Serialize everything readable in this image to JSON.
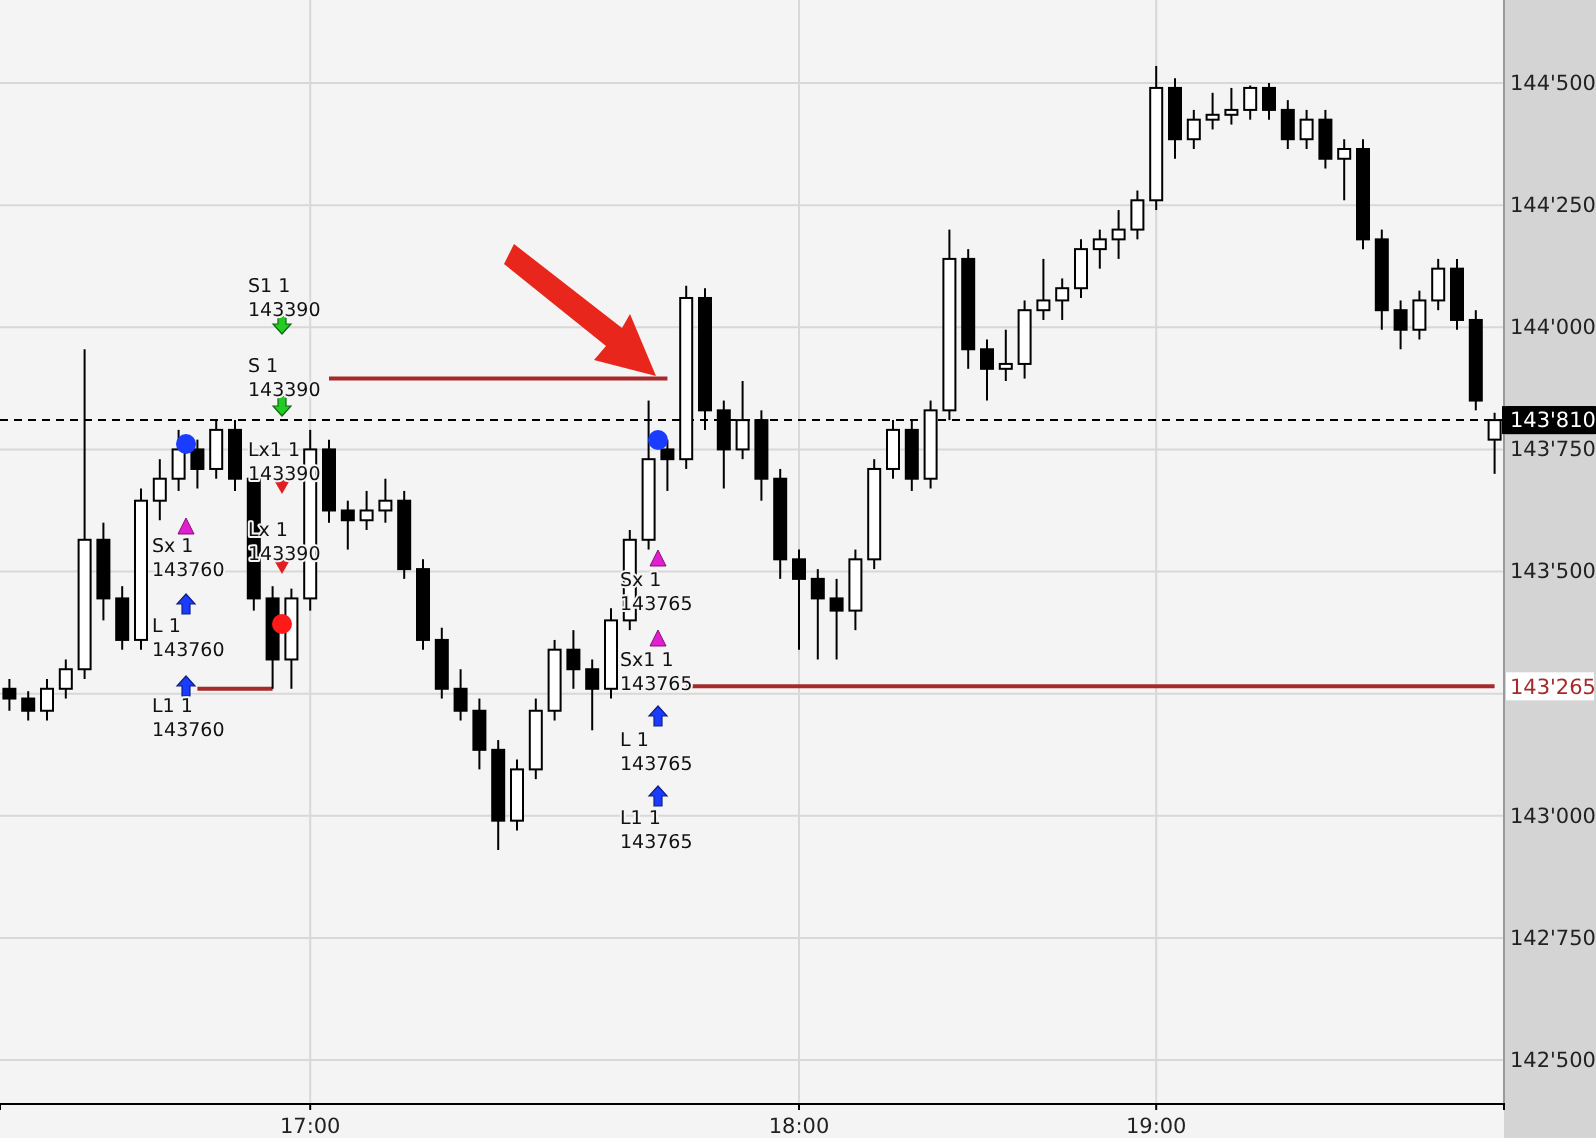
{
  "chart_data": {
    "type": "candlestick",
    "categories": [
      null,
      null,
      null,
      null,
      null,
      null,
      null,
      null,
      null,
      null,
      null,
      null,
      null,
      null,
      null,
      null,
      "17:00",
      null,
      null,
      null,
      null,
      null,
      null,
      null,
      null,
      null,
      null,
      null,
      null,
      null,
      null,
      null,
      null,
      null,
      null,
      null,
      null,
      null,
      null,
      null,
      null,
      null,
      "18:00",
      null,
      null,
      null,
      null,
      null,
      null,
      null,
      null,
      null,
      null,
      null,
      null,
      null,
      null,
      null,
      null,
      null,
      null,
      "19:00",
      null,
      null,
      null,
      null,
      null,
      null,
      null,
      null,
      null,
      null,
      null,
      null,
      null,
      null,
      null,
      null,
      null,
      null
    ],
    "ohlc": [
      [
        143260,
        143280,
        143215,
        143240
      ],
      [
        143240,
        143255,
        143195,
        143215
      ],
      [
        143215,
        143280,
        143195,
        143260
      ],
      [
        143260,
        143320,
        143240,
        143300
      ],
      [
        143300,
        143955,
        143280,
        143565
      ],
      [
        143565,
        143600,
        143400,
        143445
      ],
      [
        143445,
        143470,
        143340,
        143360
      ],
      [
        143360,
        143670,
        143340,
        143645
      ],
      [
        143645,
        143730,
        143605,
        143690
      ],
      [
        143690,
        143790,
        143665,
        143750
      ],
      [
        143750,
        143770,
        143670,
        143710
      ],
      [
        143710,
        143810,
        143690,
        143790
      ],
      [
        143790,
        143810,
        143665,
        143690
      ],
      [
        143690,
        143710,
        143420,
        143445
      ],
      [
        143445,
        143470,
        143260,
        143320
      ],
      [
        143320,
        143465,
        143260,
        143445
      ],
      [
        143445,
        143790,
        143420,
        143750
      ],
      [
        143750,
        143770,
        143600,
        143625
      ],
      [
        143625,
        143645,
        143545,
        143605
      ],
      [
        143605,
        143665,
        143585,
        143625
      ],
      [
        143625,
        143690,
        143600,
        143645
      ],
      [
        143645,
        143665,
        143485,
        143505
      ],
      [
        143505,
        143525,
        143340,
        143360
      ],
      [
        143360,
        143385,
        143240,
        143260
      ],
      [
        143260,
        143300,
        143195,
        143215
      ],
      [
        143215,
        143240,
        143095,
        143135
      ],
      [
        143135,
        143155,
        142930,
        142990
      ],
      [
        142990,
        143115,
        142970,
        143095
      ],
      [
        143095,
        143240,
        143075,
        143215
      ],
      [
        143215,
        143360,
        143195,
        143340
      ],
      [
        143340,
        143380,
        143260,
        143300
      ],
      [
        143300,
        143320,
        143175,
        143260
      ],
      [
        143260,
        143425,
        143240,
        143400
      ],
      [
        143400,
        143585,
        143380,
        143565
      ],
      [
        143565,
        143850,
        143545,
        143730
      ],
      [
        143750,
        143770,
        143665,
        143730
      ],
      [
        143730,
        144085,
        143710,
        144060
      ],
      [
        144060,
        144080,
        143790,
        143830
      ],
      [
        143830,
        143850,
        143670,
        143750
      ],
      [
        143750,
        143890,
        143730,
        143810
      ],
      [
        143810,
        143830,
        143645,
        143690
      ],
      [
        143690,
        143710,
        143485,
        143525
      ],
      [
        143525,
        143545,
        143340,
        143485
      ],
      [
        143485,
        143505,
        143320,
        143445
      ],
      [
        143445,
        143485,
        143320,
        143420
      ],
      [
        143420,
        143545,
        143380,
        143525
      ],
      [
        143525,
        143730,
        143505,
        143710
      ],
      [
        143710,
        143810,
        143690,
        143790
      ],
      [
        143790,
        143810,
        143665,
        143690
      ],
      [
        143690,
        143850,
        143670,
        143830
      ],
      [
        143830,
        144200,
        143810,
        144140
      ],
      [
        144140,
        144160,
        143915,
        143955
      ],
      [
        143955,
        143975,
        143850,
        143915
      ],
      [
        143915,
        143995,
        143890,
        143925
      ],
      [
        143925,
        144055,
        143895,
        144035
      ],
      [
        144035,
        144140,
        144015,
        144055
      ],
      [
        144055,
        144100,
        144015,
        144080
      ],
      [
        144080,
        144180,
        144060,
        144160
      ],
      [
        144160,
        144200,
        144120,
        144180
      ],
      [
        144180,
        144240,
        144140,
        144200
      ],
      [
        144200,
        144280,
        144180,
        144260
      ],
      [
        144260,
        144535,
        144240,
        144490
      ],
      [
        144490,
        144510,
        144345,
        144385
      ],
      [
        144385,
        144445,
        144365,
        144425
      ],
      [
        144425,
        144480,
        144405,
        144435
      ],
      [
        144435,
        144490,
        144415,
        144445
      ],
      [
        144445,
        144495,
        144425,
        144490
      ],
      [
        144490,
        144500,
        144425,
        144445
      ],
      [
        144445,
        144465,
        144365,
        144385
      ],
      [
        144385,
        144445,
        144365,
        144425
      ],
      [
        144425,
        144445,
        144325,
        144345
      ],
      [
        144345,
        144385,
        144260,
        144365
      ],
      [
        144365,
        144385,
        144160,
        144180
      ],
      [
        144180,
        144200,
        143995,
        144035
      ],
      [
        144035,
        144055,
        143955,
        143995
      ],
      [
        143995,
        144075,
        143975,
        144055
      ],
      [
        144055,
        144140,
        144035,
        144120
      ],
      [
        144120,
        144140,
        143995,
        144015
      ],
      [
        144015,
        144035,
        143830,
        143850
      ],
      [
        143770,
        143825,
        143700,
        143810
      ]
    ],
    "series": [
      {
        "type": "line",
        "color": "#a52a2a",
        "values": [
          null,
          null,
          null,
          null,
          null,
          null,
          null,
          null,
          null,
          null,
          null,
          null,
          null,
          null,
          null,
          null,
          null,
          143895,
          143895,
          143895,
          143895,
          143895,
          143895,
          143895,
          143895,
          143895,
          143895,
          143895,
          143895,
          143895,
          143895,
          143895,
          143895,
          143895,
          143895,
          143895,
          null,
          null,
          null,
          null,
          null,
          null,
          null,
          null,
          null,
          null,
          null,
          null,
          null,
          null,
          null,
          null,
          null,
          null,
          null,
          null,
          null,
          null,
          null,
          null,
          null,
          null,
          null,
          null,
          null,
          null,
          null,
          null,
          null,
          null,
          null,
          null,
          null,
          null,
          null,
          null,
          null,
          null,
          null,
          null
        ]
      },
      {
        "type": "line",
        "color": "#a52a2a",
        "values": [
          null,
          null,
          null,
          null,
          null,
          null,
          null,
          null,
          null,
          null,
          143260,
          143260,
          143260,
          143260,
          143260,
          null,
          null,
          null,
          null,
          null,
          null,
          null,
          null,
          null,
          null,
          null,
          null,
          null,
          null,
          null,
          null,
          null,
          null,
          null,
          null,
          null,
          null,
          null,
          null,
          null,
          null,
          null,
          null,
          null,
          null,
          null,
          null,
          null,
          null,
          null,
          null,
          null,
          null,
          null,
          null,
          null,
          null,
          null,
          null,
          null,
          null,
          null,
          null,
          null,
          null,
          null,
          null,
          null,
          null,
          null,
          null,
          null,
          null,
          null,
          null,
          null,
          null,
          null,
          null,
          null
        ]
      },
      {
        "type": "line",
        "color": "#a52a2a",
        "values": [
          null,
          null,
          null,
          null,
          null,
          null,
          null,
          null,
          null,
          null,
          null,
          null,
          null,
          null,
          null,
          null,
          null,
          null,
          null,
          null,
          null,
          null,
          null,
          null,
          null,
          null,
          null,
          null,
          null,
          null,
          null,
          null,
          null,
          null,
          null,
          null,
          143265,
          143265,
          143265,
          143265,
          143265,
          143265,
          143265,
          143265,
          143265,
          143265,
          143265,
          143265,
          143265,
          143265,
          143265,
          143265,
          143265,
          143265,
          143265,
          143265,
          143265,
          143265,
          143265,
          143265,
          143265,
          143265,
          143265,
          143265,
          143265,
          143265,
          143265,
          143265,
          143265,
          143265,
          143265,
          143265,
          143265,
          143265,
          143265,
          143265,
          143265,
          143265,
          143265,
          143265
        ]
      }
    ],
    "ylim": [
      142410,
      144670
    ],
    "yticks": [
      {
        "value": 142500,
        "label": "142'500"
      },
      {
        "value": 142750,
        "label": "142'750"
      },
      {
        "value": 143000,
        "label": "143'000"
      },
      {
        "value": 143250,
        "label": null
      },
      {
        "value": 143500,
        "label": "143'500"
      },
      {
        "value": 143750,
        "label": "143'750"
      },
      {
        "value": 144000,
        "label": "144'000"
      },
      {
        "value": 144250,
        "label": "144'250"
      },
      {
        "value": 144500,
        "label": "144'500"
      }
    ],
    "grid": true,
    "ref_lines": [
      {
        "axis": "y",
        "value": 143810,
        "label": "143'810",
        "color": "#000000",
        "line_style": "dashed"
      }
    ],
    "annotations": [
      "S1 1\n143390",
      "S 1\n143390",
      "Lx1 1\n143390",
      "Lx 1\n143390",
      "Sx 1\n143760",
      "L 1\n143760",
      "L1 1\n143760",
      "Sx 1\n143765",
      "Sx1 1\n143765",
      "L 1\n143765",
      "L1 1\n143765",
      {
        "text": "143'265",
        "y": 143265
      }
    ]
  }
}
